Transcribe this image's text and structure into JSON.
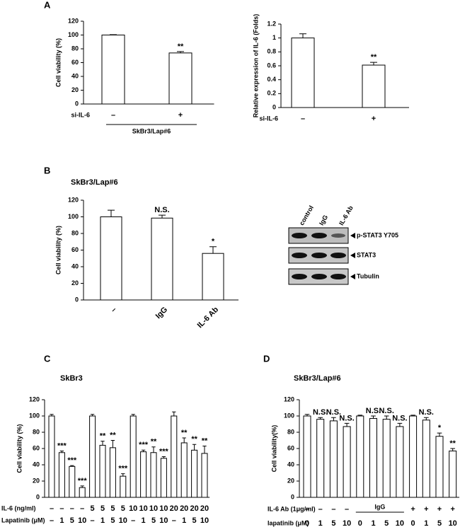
{
  "chart_data": [
    {
      "type": "bar",
      "panel": "A",
      "ylabel": "Cell viability (%)",
      "values": [
        100,
        74
      ],
      "errors": [
        0.5,
        2
      ],
      "annotations": [
        null,
        "**"
      ],
      "rows": [
        {
          "label": "si-IL-6",
          "values": [
            "–",
            "+"
          ]
        }
      ],
      "group_label": "SkBr3/Lap#6",
      "ylim": [
        0,
        120
      ],
      "yticks": [
        0,
        20,
        40,
        60,
        80,
        100,
        120
      ]
    },
    {
      "type": "bar",
      "ylabel": "Relative expression of IL-6 (Folds)",
      "values": [
        1.0,
        0.61
      ],
      "errors": [
        0.06,
        0.04
      ],
      "annotations": [
        null,
        "**"
      ],
      "rows": [
        {
          "label": "si-IL-6",
          "values": [
            "–",
            "+"
          ]
        }
      ],
      "ylim": [
        0,
        1.2
      ],
      "yticks": [
        0,
        0.2,
        0.4,
        0.6,
        0.8,
        1,
        1.2
      ]
    },
    {
      "type": "bar",
      "panel": "B",
      "title": "SkBr3/Lap#6",
      "ylabel": "Cell  viability (%)",
      "categories": [
        "–",
        "IgG",
        "IL-6 Ab"
      ],
      "values": [
        100,
        98.5,
        56
      ],
      "errors": [
        8,
        3.5,
        8
      ],
      "annotations": [
        null,
        "N.S.",
        "*"
      ],
      "ylim": [
        0,
        120
      ],
      "yticks": [
        0,
        20,
        40,
        60,
        80,
        100,
        120
      ]
    },
    {
      "type": "bar",
      "panel": "C",
      "title": "SkBr3",
      "ylabel": "Cell viability (%)",
      "values": [
        100,
        55,
        38,
        12,
        100,
        64,
        61,
        26,
        100,
        56,
        55,
        48,
        100,
        67,
        58,
        54
      ],
      "errors": [
        2,
        2,
        1,
        2,
        2,
        5,
        9,
        3,
        2,
        2,
        7,
        2,
        5,
        6,
        7,
        9
      ],
      "annotations": [
        null,
        "***",
        "***",
        "***",
        null,
        "**",
        "**",
        "***",
        null,
        "***",
        "**",
        "***",
        null,
        "**",
        "**",
        "**"
      ],
      "rows": [
        {
          "label": "IL-6 (ng/ml)",
          "values": [
            "–",
            "–",
            "–",
            "–",
            "5",
            "5",
            "5",
            "5",
            "10",
            "10",
            "10",
            "10",
            "20",
            "20",
            "20",
            "20"
          ]
        },
        {
          "label": "Lapatinib (μM)",
          "values": [
            "–",
            "1",
            "5",
            "10",
            "–",
            "1",
            "5",
            "10",
            "–",
            "1",
            "5",
            "10",
            "–",
            "1",
            "5",
            "10"
          ]
        }
      ],
      "ylim": [
        0,
        120
      ],
      "yticks": [
        0,
        20,
        40,
        60,
        80,
        100,
        120
      ]
    },
    {
      "type": "bar",
      "panel": "D",
      "title": "SkBr3/Lap#6",
      "ylabel": "Cell viability(%)",
      "values": [
        100,
        96,
        94,
        87,
        100,
        97,
        96,
        87,
        100,
        95,
        75,
        57
      ],
      "errors": [
        2,
        2,
        4,
        4,
        1,
        3,
        4,
        4,
        1,
        3,
        4,
        3
      ],
      "annotations": [
        null,
        "N.S.",
        "N.S.",
        "N.S.",
        null,
        "N.S.",
        "N.S.",
        "N.S.",
        null,
        "N.S.",
        "*",
        "**"
      ],
      "rows": [
        {
          "label": "IL-6 Ab (1μg/ml)",
          "values": [
            "–",
            "–",
            "–",
            "–",
            null,
            null,
            null,
            null,
            "+",
            "+",
            "+",
            "+"
          ],
          "group_label": "IgG"
        },
        {
          "label": "lapatinib (μM)",
          "values": [
            "0",
            "1",
            "5",
            "10",
            "0",
            "1",
            "5",
            "10",
            "0",
            "1",
            "5",
            "10"
          ]
        }
      ],
      "ylim": [
        0,
        120
      ],
      "yticks": [
        0,
        20,
        40,
        60,
        80,
        100,
        120
      ]
    }
  ],
  "blot": {
    "lanes": [
      "control",
      "IgG",
      "IL-6 Ab"
    ],
    "bands": [
      "p-STAT3 Y705",
      "STAT3",
      "Tubulin"
    ]
  }
}
